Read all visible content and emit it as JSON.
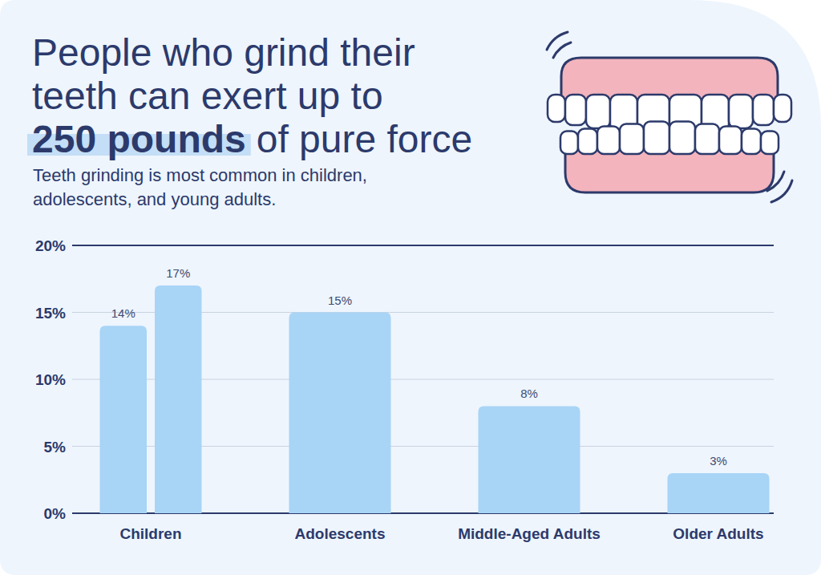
{
  "chart_data": {
    "type": "bar",
    "title": "People who grind their teeth can exert up to 250 pounds of pure force",
    "title_highlight": "250 pounds",
    "subtitle": "Teeth grinding is most common in children, adolescents, and young adults.",
    "categories": [
      "Children",
      null,
      "Adolescents",
      "Middle-Aged Adults",
      "Older Adults"
    ],
    "values": [
      14,
      17,
      15,
      8,
      3
    ],
    "value_labels": [
      "14%",
      "17%",
      "15%",
      "8%",
      "3%"
    ],
    "color": "#a8d4f6",
    "ylim": [
      0,
      20
    ],
    "yticks": [
      {
        "value": 0,
        "label": "0%"
      },
      {
        "value": 5,
        "label": "5%"
      },
      {
        "value": 10,
        "label": "10%"
      },
      {
        "value": 15,
        "label": "15%"
      },
      {
        "value": 20,
        "label": "20%"
      }
    ],
    "grid": true,
    "data_labels": true
  }
}
